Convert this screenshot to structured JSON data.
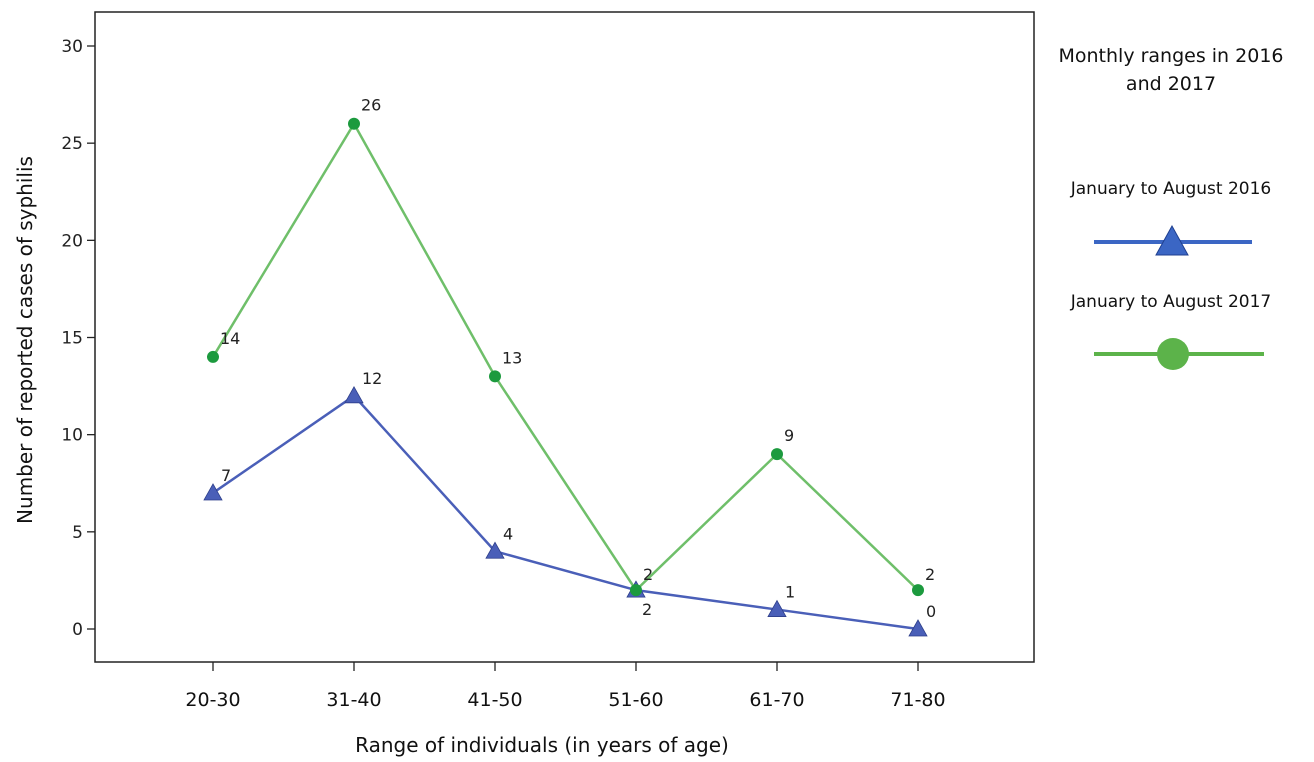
{
  "chart_data": {
    "type": "line",
    "xlabel": "Range of individuals (in years of age)",
    "ylabel": "Number of reported cases of syphilis",
    "ylim": [
      0,
      30
    ],
    "yticks": [
      0,
      5,
      10,
      15,
      20,
      25,
      30
    ],
    "categories": [
      "20-30",
      "31-40",
      "41-50",
      "51-60",
      "61-70",
      "71-80"
    ],
    "grid": false,
    "legend": {
      "title_lines": [
        "Monthly ranges in 2016",
        "and 2017"
      ],
      "placement": "right"
    },
    "series": [
      {
        "name": "January to August 2016",
        "values": [
          7,
          12,
          4,
          2,
          1,
          0
        ],
        "color": "#4a5fb8",
        "marker": "triangle",
        "legend_color": "#3b66c4"
      },
      {
        "name": "January to August 2017",
        "values": [
          14,
          26,
          13,
          2,
          9,
          2
        ],
        "color": "#6fbf6a",
        "marker": "circle",
        "marker_color": "#1c9a3e",
        "legend_color": "#5cb34a"
      }
    ],
    "data_labels": [
      [
        "7",
        "12",
        "4",
        "2",
        "1",
        "0"
      ],
      [
        "14",
        "26",
        "13",
        "2",
        "9",
        "2"
      ]
    ]
  }
}
